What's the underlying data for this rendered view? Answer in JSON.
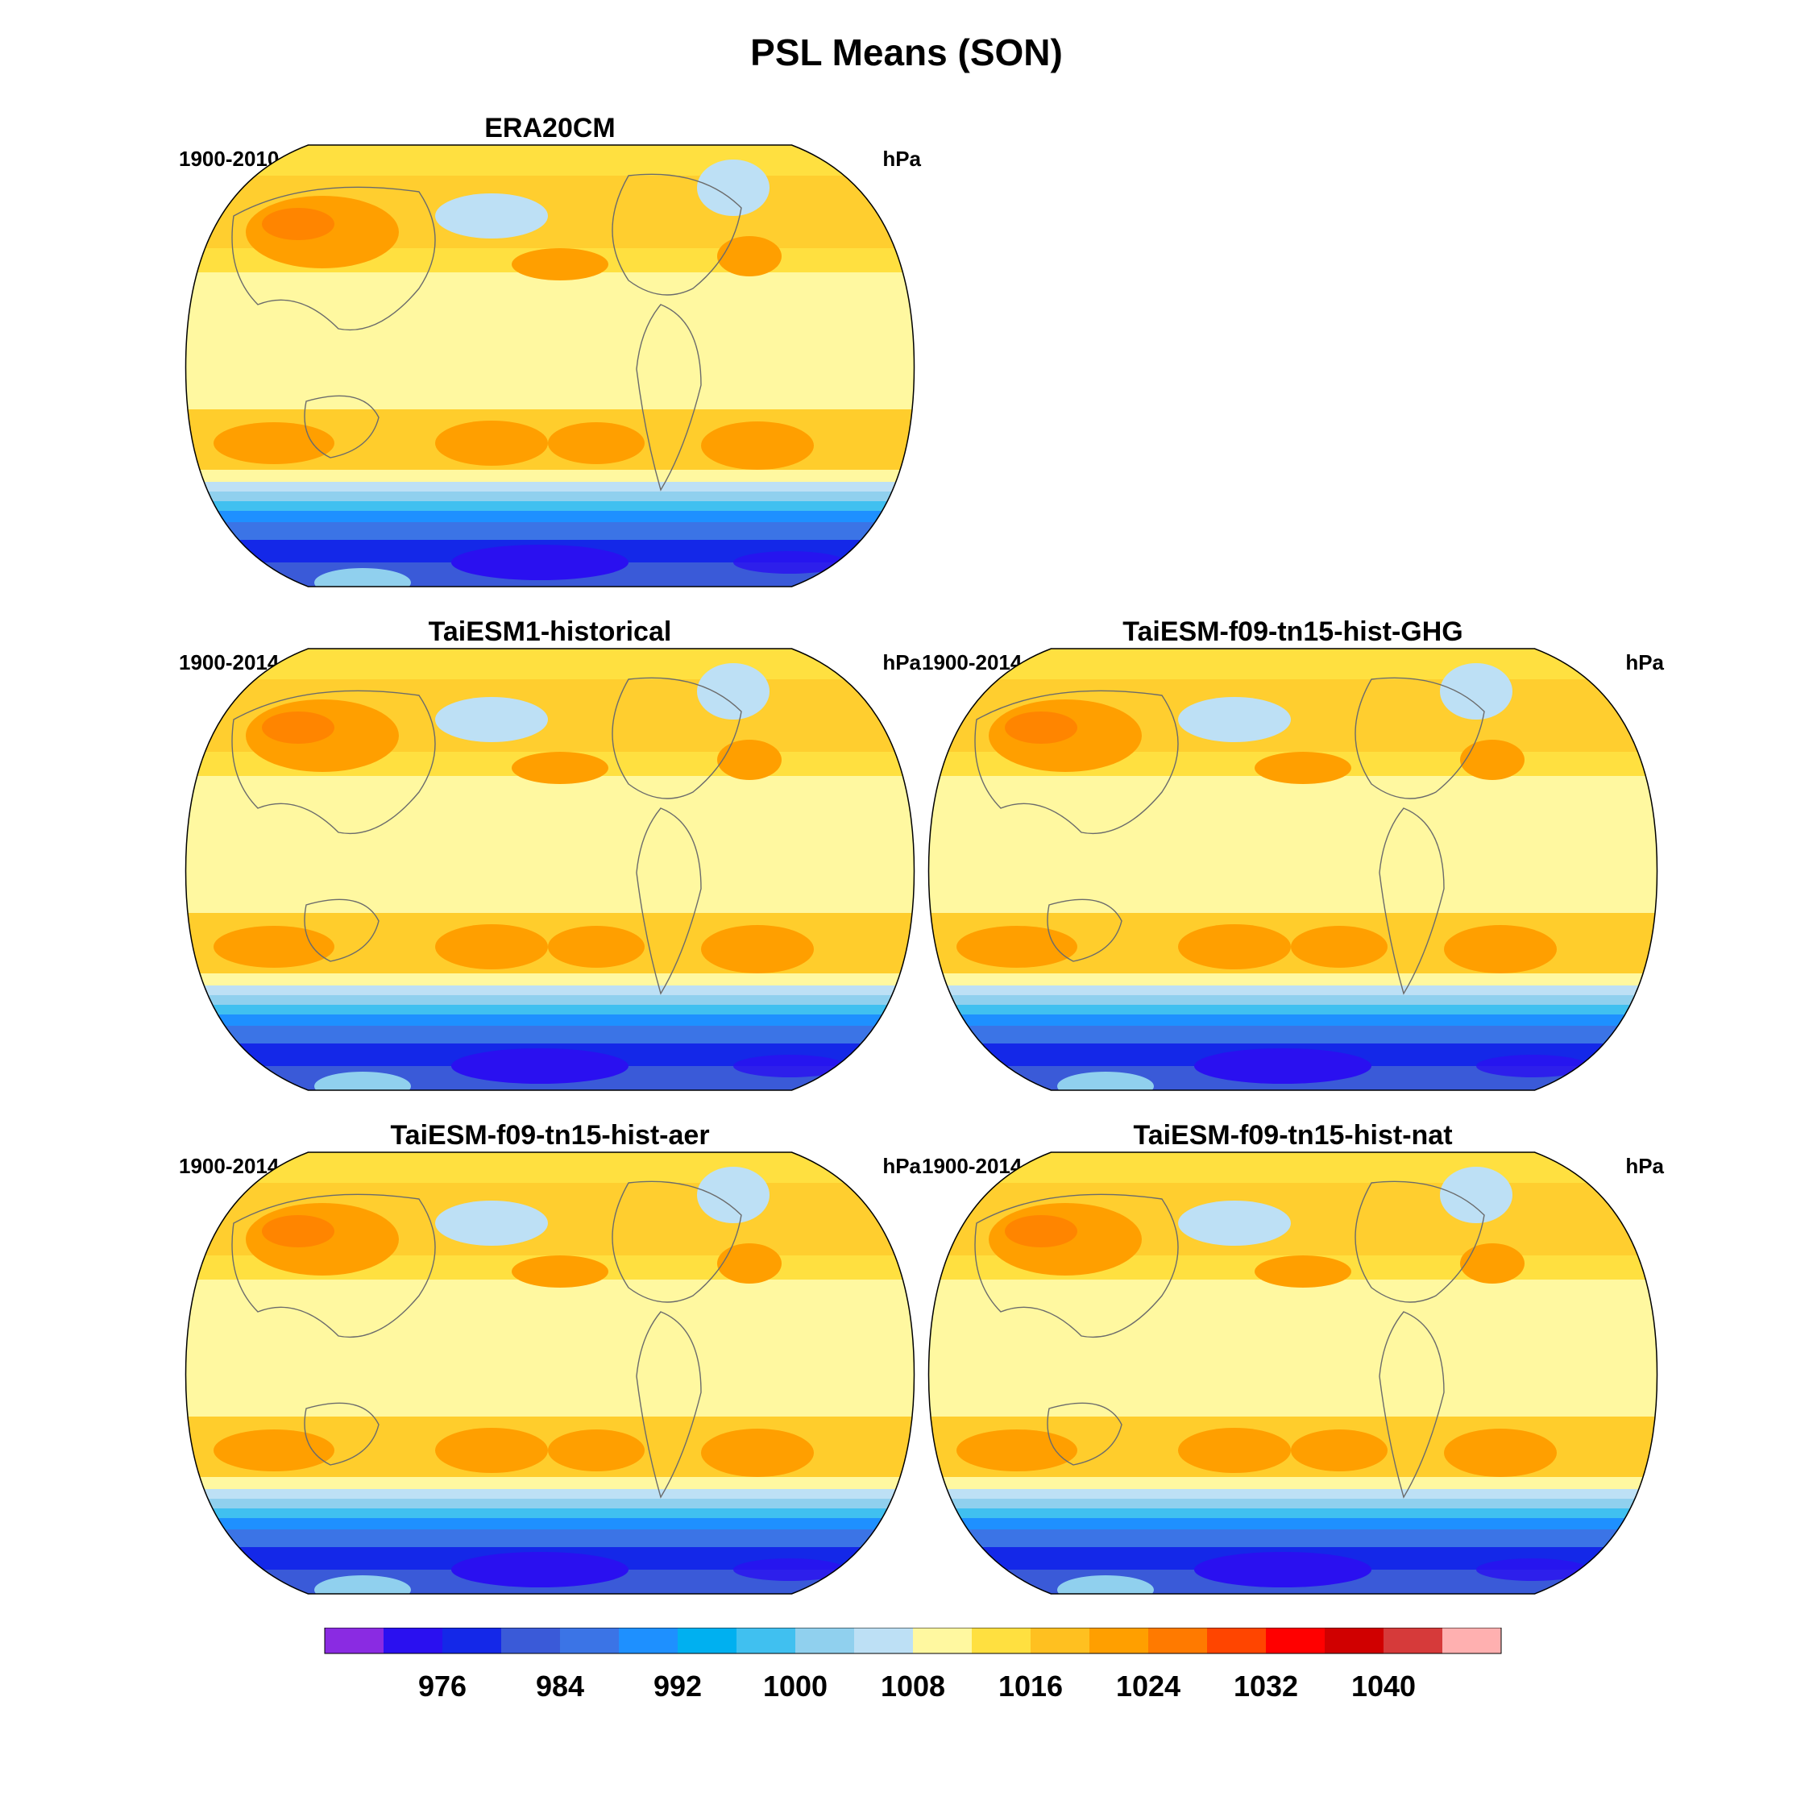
{
  "figure": {
    "title": "PSL Means (SON)"
  },
  "panels": [
    {
      "title": "ERA20CM",
      "period": "1900-2010",
      "units": "hPa"
    },
    {
      "title": "TaiESM1-historical",
      "period": "1900-2014",
      "units": "hPa"
    },
    {
      "title": "TaiESM-f09-tn15-hist-GHG",
      "period": "1900-2014",
      "units": "hPa"
    },
    {
      "title": "TaiESM-f09-tn15-hist-aer",
      "period": "1900-2014",
      "units": "hPa"
    },
    {
      "title": "TaiESM-f09-tn15-hist-nat",
      "period": "1900-2014",
      "units": "hPa"
    }
  ],
  "colorbar": {
    "colors": [
      "#8a2be2",
      "#2a10f0",
      "#1428e8",
      "#3a5ad8",
      "#3b74e6",
      "#1e90ff",
      "#00b0f0",
      "#40c0f0",
      "#90d0ee",
      "#bde0f5",
      "#fff8a0",
      "#ffe040",
      "#ffc020",
      "#ff9f00",
      "#ff7a00",
      "#ff4500",
      "#ff0000",
      "#d00000",
      "#d63a3a",
      "#ffb0b0"
    ],
    "labels": [
      "976",
      "984",
      "992",
      "1000",
      "1008",
      "1016",
      "1024",
      "1032",
      "1040"
    ],
    "label_boundary_index": [
      2,
      4,
      6,
      8,
      10,
      12,
      14,
      16,
      18
    ]
  }
}
